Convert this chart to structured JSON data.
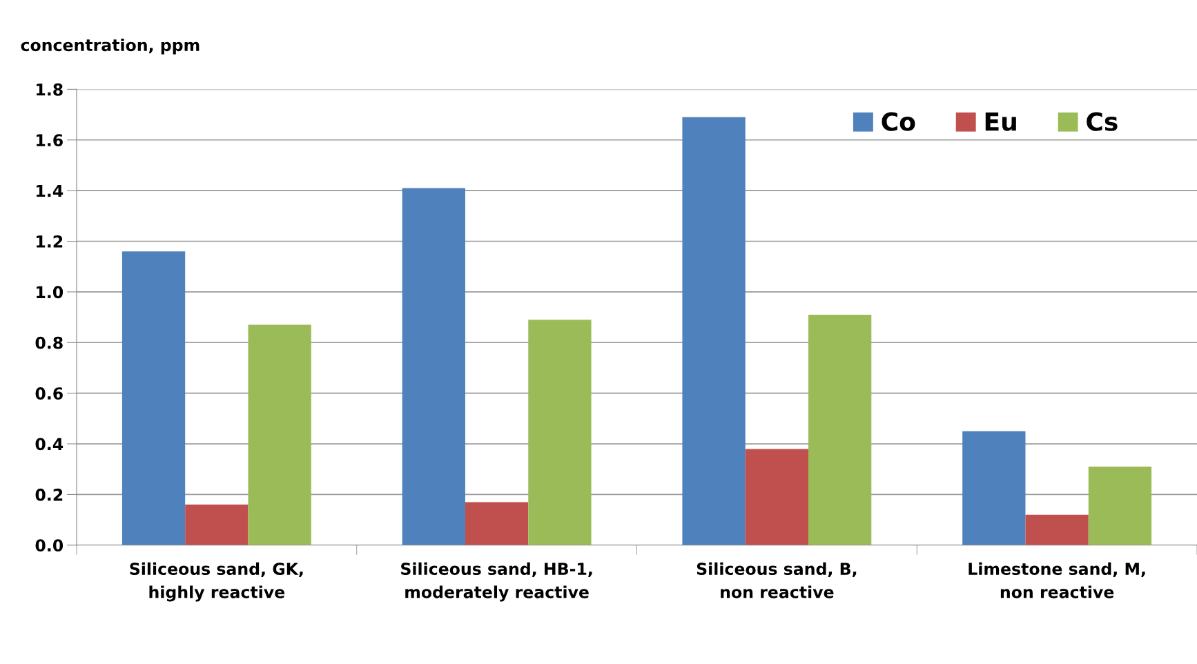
{
  "chart_data": {
    "type": "bar",
    "ylabel": "concentration, ppm",
    "categories": [
      "Siliceous sand, GK,\nhighly reactive",
      "Siliceous sand, HB-1,\nmoderately reactive",
      "Siliceous sand, B,\nnon reactive",
      "Limestone sand, M,\nnon reactive"
    ],
    "series": [
      {
        "name": "Co",
        "color": "#4f81bd",
        "values": [
          1.16,
          1.41,
          1.69,
          0.45
        ]
      },
      {
        "name": "Eu",
        "color": "#c0504d",
        "values": [
          0.16,
          0.17,
          0.38,
          0.12
        ]
      },
      {
        "name": "Cs",
        "color": "#9bbb59",
        "values": [
          0.87,
          0.89,
          0.91,
          0.31
        ]
      }
    ],
    "ylim": [
      0,
      1.8
    ],
    "yticks": [
      {
        "value": 0,
        "label": "0.0"
      },
      {
        "value": 0.2,
        "label": "0.2"
      },
      {
        "value": 0.4,
        "label": "0.4"
      },
      {
        "value": 0.6,
        "label": "0.6"
      },
      {
        "value": 0.8,
        "label": "0.8"
      },
      {
        "value": 1.0,
        "label": "1.0"
      },
      {
        "value": 1.2,
        "label": "1.2"
      },
      {
        "value": 1.4,
        "label": "1.4"
      },
      {
        "value": 1.6,
        "label": "1.6"
      },
      {
        "value": 1.8,
        "label": "1.8"
      }
    ],
    "grid": "y",
    "legend": "top right"
  }
}
